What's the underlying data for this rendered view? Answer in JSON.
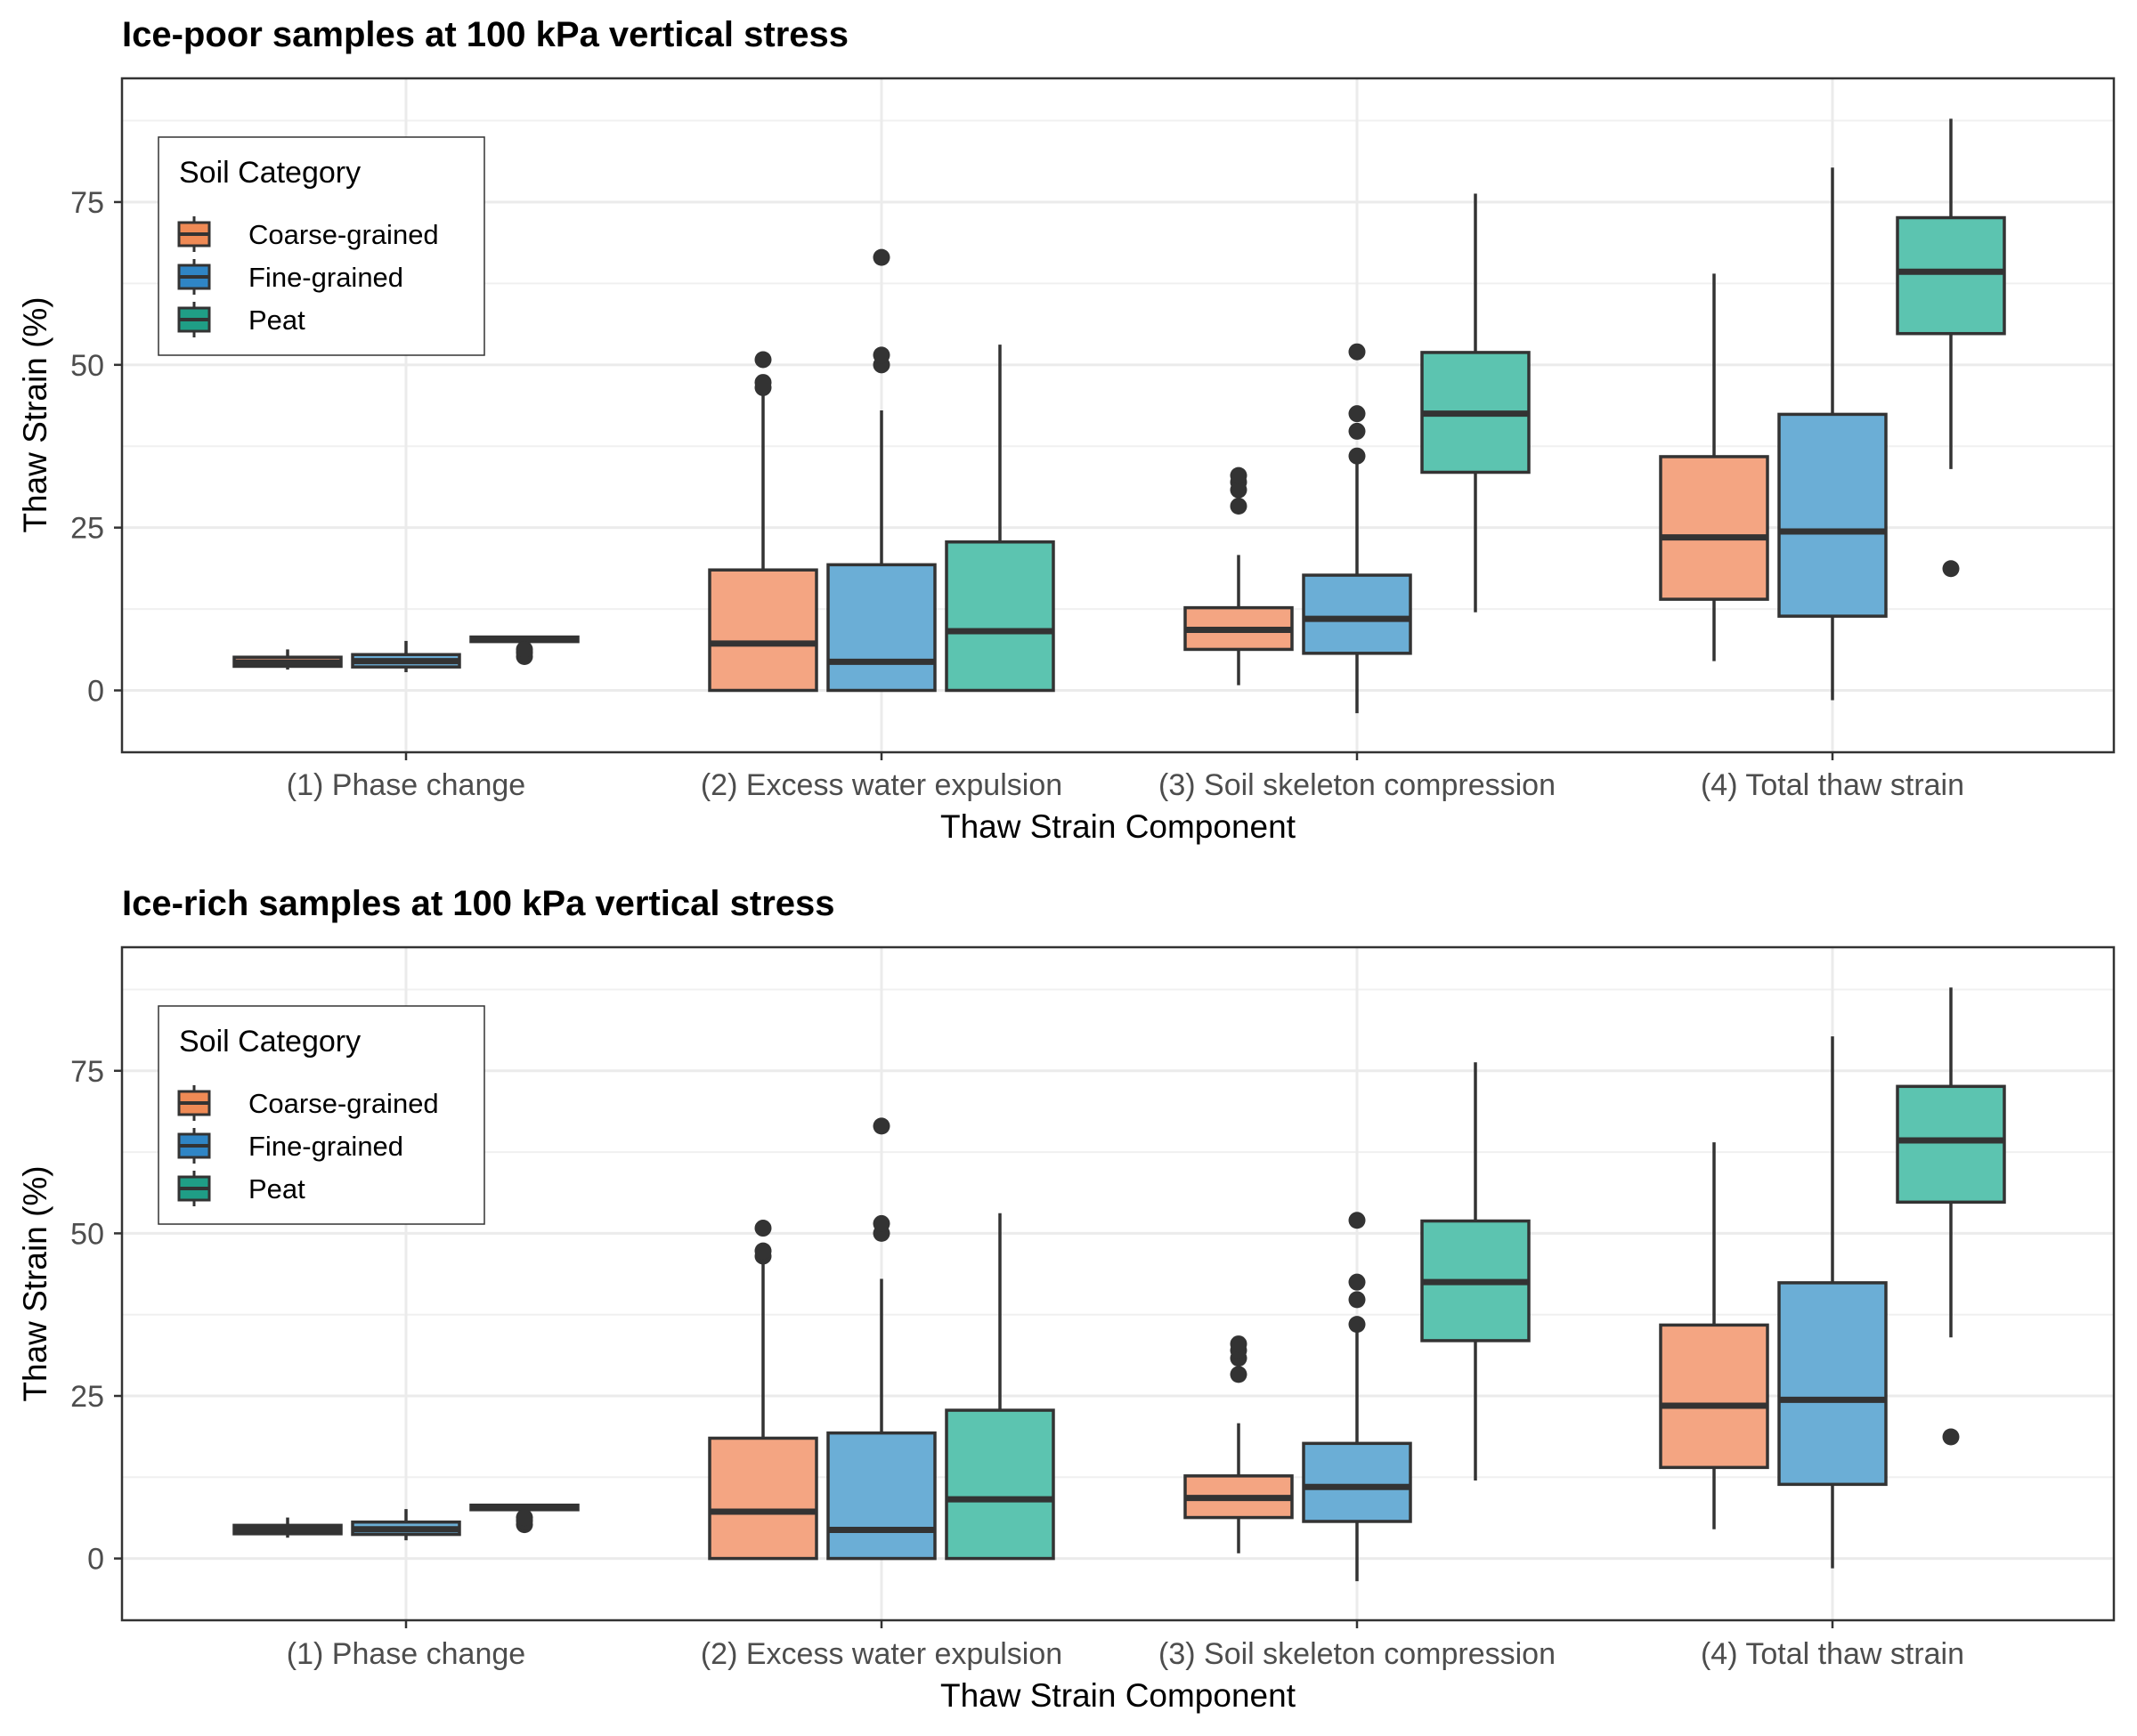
{
  "chart_data": [
    {
      "type": "boxplot",
      "title": "Ice-poor samples at 100 kPa vertical stress",
      "xlabel": "Thaw Strain Component",
      "ylabel": "Thaw Strain (%)",
      "ylim": [
        -9.5,
        94
      ],
      "yticks": [
        0,
        25,
        50,
        75
      ],
      "grid": true,
      "legend": {
        "title": "Soil Category",
        "placement": "top-left"
      },
      "categories": [
        "(1) Phase change",
        "(2) Excess water expulsion",
        "(3) Soil skeleton compression",
        "(4) Total thaw strain"
      ],
      "series": [
        {
          "name": "Coarse-grained",
          "color": "#f4a582",
          "legend_color": "#ef8a55",
          "boxes": [
            {
              "whislo": 3.2,
              "q1": 3.7,
              "med": 4.3,
              "q3": 5.1,
              "whishi": 6.3,
              "outliers": []
            },
            {
              "whislo": 0.0,
              "q1": 0.0,
              "med": 7.2,
              "q3": 18.5,
              "whishi": 45.5,
              "outliers": [
                46.5,
                47.3,
                50.8
              ]
            },
            {
              "whislo": 0.8,
              "q1": 6.3,
              "med": 9.3,
              "q3": 12.7,
              "whishi": 20.8,
              "outliers": [
                28.3,
                30.8,
                32.0,
                33.0
              ]
            },
            {
              "whislo": 4.5,
              "q1": 14.0,
              "med": 23.5,
              "q3": 35.9,
              "whishi": 64.0,
              "outliers": []
            }
          ]
        },
        {
          "name": "Fine-grained",
          "color": "#6baed6",
          "legend_color": "#2f85c5",
          "boxes": [
            {
              "whislo": 2.8,
              "q1": 3.6,
              "med": 4.5,
              "q3": 5.5,
              "whishi": 7.6,
              "outliers": []
            },
            {
              "whislo": 0.0,
              "q1": 0.0,
              "med": 4.4,
              "q3": 19.3,
              "whishi": 43.0,
              "outliers": [
                50.0,
                51.5,
                66.5
              ]
            },
            {
              "whislo": -3.5,
              "q1": 5.7,
              "med": 11.0,
              "q3": 17.7,
              "whishi": 35.0,
              "outliers": [
                36.0,
                39.8,
                42.5,
                52.0
              ]
            },
            {
              "whislo": -1.5,
              "q1": 11.4,
              "med": 24.4,
              "q3": 42.4,
              "whishi": 80.3,
              "outliers": []
            }
          ]
        },
        {
          "name": "Peat",
          "color": "#5cc4b0",
          "legend_color": "#1f9e86",
          "boxes": [
            {
              "whislo": 7.2,
              "q1": 7.5,
              "med": 7.9,
              "q3": 8.2,
              "whishi": 8.4,
              "outliers": [
                5.2,
                5.8,
                6.3
              ]
            },
            {
              "whislo": 0.0,
              "q1": 0.0,
              "med": 9.1,
              "q3": 22.8,
              "whishi": 53.1,
              "outliers": []
            },
            {
              "whislo": 12.0,
              "q1": 33.5,
              "med": 42.5,
              "q3": 51.9,
              "whishi": 76.3,
              "outliers": []
            },
            {
              "whislo": 34.0,
              "q1": 54.8,
              "med": 64.3,
              "q3": 72.6,
              "whishi": 87.8,
              "outliers": [
                18.7
              ]
            }
          ]
        }
      ]
    },
    {
      "type": "boxplot",
      "title": "Ice-rich samples at 100 kPa vertical stress",
      "xlabel": "Thaw Strain Component",
      "ylabel": "Thaw Strain (%)",
      "ylim": [
        -9.5,
        94
      ],
      "yticks": [
        0,
        25,
        50,
        75
      ],
      "grid": true,
      "legend": {
        "title": "Soil Category",
        "placement": "top-left"
      },
      "categories": [
        "(1) Phase change",
        "(2) Excess water expulsion",
        "(3) Soil skeleton compression",
        "(4) Total thaw strain"
      ],
      "series": [
        {
          "name": "Coarse-grained",
          "color": "#f4a582",
          "legend_color": "#ef8a55",
          "boxes": [
            {
              "whislo": 3.2,
              "q1": 3.8,
              "med": 4.4,
              "q3": 5.1,
              "whishi": 6.3,
              "outliers": []
            },
            {
              "whislo": 0.0,
              "q1": 0.0,
              "med": 7.2,
              "q3": 18.5,
              "whishi": 45.5,
              "outliers": [
                46.5,
                47.3,
                50.8
              ]
            },
            {
              "whislo": 0.8,
              "q1": 6.3,
              "med": 9.3,
              "q3": 12.7,
              "whishi": 20.8,
              "outliers": [
                28.3,
                30.8,
                32.0,
                33.0
              ]
            },
            {
              "whislo": 4.5,
              "q1": 14.0,
              "med": 23.5,
              "q3": 35.9,
              "whishi": 64.0,
              "outliers": []
            }
          ]
        },
        {
          "name": "Fine-grained",
          "color": "#6baed6",
          "legend_color": "#2f85c5",
          "boxes": [
            {
              "whislo": 2.8,
              "q1": 3.7,
              "med": 4.5,
              "q3": 5.6,
              "whishi": 7.6,
              "outliers": []
            },
            {
              "whislo": 0.0,
              "q1": 0.0,
              "med": 4.4,
              "q3": 19.3,
              "whishi": 43.0,
              "outliers": [
                50.0,
                51.5,
                66.5
              ]
            },
            {
              "whislo": -3.5,
              "q1": 5.7,
              "med": 11.0,
              "q3": 17.7,
              "whishi": 35.0,
              "outliers": [
                36.0,
                39.8,
                42.5,
                52.0
              ]
            },
            {
              "whislo": -1.5,
              "q1": 11.4,
              "med": 24.4,
              "q3": 42.4,
              "whishi": 80.3,
              "outliers": []
            }
          ]
        },
        {
          "name": "Peat",
          "color": "#5cc4b0",
          "legend_color": "#1f9e86",
          "boxes": [
            {
              "whislo": 7.2,
              "q1": 7.5,
              "med": 7.9,
              "q3": 8.2,
              "whishi": 8.4,
              "outliers": [
                5.2,
                5.8,
                6.3
              ]
            },
            {
              "whislo": 0.0,
              "q1": 0.0,
              "med": 9.1,
              "q3": 22.8,
              "whishi": 53.1,
              "outliers": []
            },
            {
              "whislo": 12.0,
              "q1": 33.5,
              "med": 42.5,
              "q3": 51.9,
              "whishi": 76.3,
              "outliers": []
            },
            {
              "whislo": 34.0,
              "q1": 54.8,
              "med": 64.3,
              "q3": 72.6,
              "whishi": 87.8,
              "outliers": [
                18.7
              ]
            }
          ]
        }
      ]
    }
  ]
}
